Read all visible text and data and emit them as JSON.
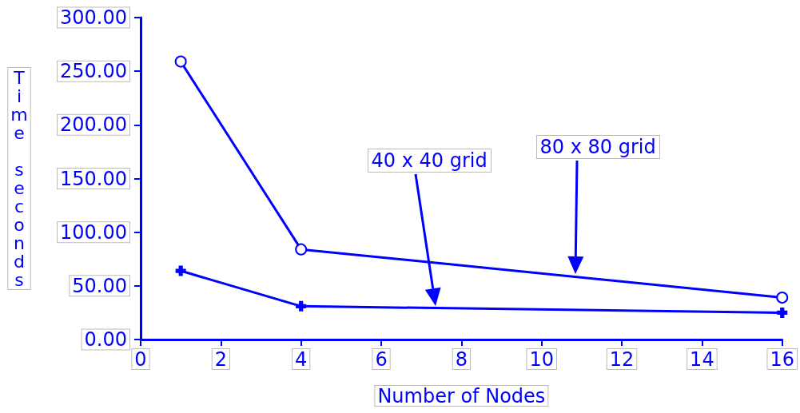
{
  "chart_data": {
    "type": "line",
    "xlabel": "Number of Nodes",
    "ylabel": "Time seconds",
    "x": [
      1,
      4,
      16
    ],
    "series": [
      {
        "color": "#0000ff",
        "marker": "circle",
        "values": [
          259,
          84,
          39
        ]
      },
      {
        "color": "#0000ff",
        "marker": "cross",
        "values": [
          64,
          31,
          25
        ]
      }
    ],
    "xlim": [
      0,
      16
    ],
    "xticks": [
      0,
      2,
      4,
      6,
      8,
      10,
      12,
      14,
      16
    ],
    "ylim": [
      0,
      300
    ],
    "yticks": [
      {
        "value": 0,
        "label": "0.00"
      },
      {
        "value": 50,
        "label": "50.00"
      },
      {
        "value": 100,
        "label": "100.00"
      },
      {
        "value": 150,
        "label": "150.00"
      },
      {
        "value": 200,
        "label": "200.00"
      },
      {
        "value": 250,
        "label": "250.00"
      },
      {
        "value": 300,
        "label": "300.00"
      }
    ],
    "annotations": [
      "40 x 40 grid",
      "80 x 80 grid"
    ],
    "grid": false,
    "line_style": "solid"
  }
}
